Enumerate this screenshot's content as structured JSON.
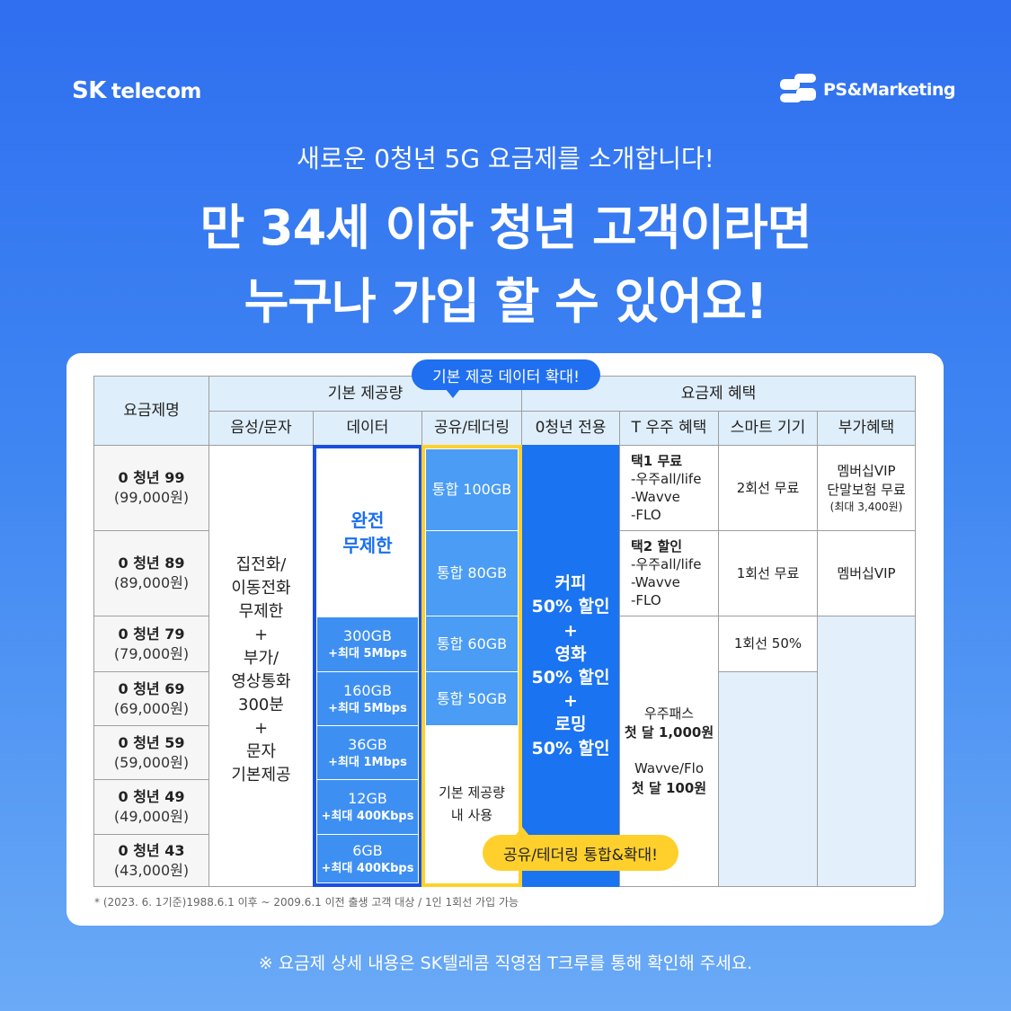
{
  "brand": {
    "left_sk": "SK",
    "left_rest": "telecom",
    "right": "PS&Marketing"
  },
  "subtitle": "새로운 0청년 5G 요금제를 소개합니다!",
  "headline": {
    "line1": "만 34세 이하 청년 고객이라면",
    "line2": "누구나 가입 할 수 있어요!"
  },
  "table": {
    "headers": {
      "plan_name": "요금제명",
      "basic": "기본 제공량",
      "benefits": "요금제 혜택",
      "voice": "음성/문자",
      "data": "데이터",
      "share": "공유/테더링",
      "youth_only": "0청년 전용",
      "t_universe": "T 우주 혜택",
      "smart_device": "스마트 기기",
      "extra": "부가혜택"
    },
    "plans": [
      {
        "name": "0 청년 99",
        "price": "(99,000원)"
      },
      {
        "name": "0 청년 89",
        "price": "(89,000원)"
      },
      {
        "name": "0 청년 79",
        "price": "(79,000원)"
      },
      {
        "name": "0 청년 69",
        "price": "(69,000원)"
      },
      {
        "name": "0 청년 59",
        "price": "(59,000원)"
      },
      {
        "name": "0 청년 49",
        "price": "(49,000원)"
      },
      {
        "name": "0 청년 43",
        "price": "(43,000원)"
      }
    ],
    "voice_lines": [
      "집전화/",
      "이동전화",
      "무제한",
      "+",
      "부가/",
      "영상통화",
      "300분",
      "+",
      "문자",
      "기본제공"
    ],
    "data_unlimited": [
      "완전",
      "무제한"
    ],
    "data_rows": [
      {
        "amount": "300GB",
        "speed": "+최대 5Mbps"
      },
      {
        "amount": "160GB",
        "speed": "+최대 5Mbps"
      },
      {
        "amount": "36GB",
        "speed": "+최대 1Mbps"
      },
      {
        "amount": "12GB",
        "speed": "+최대 400Kbps"
      },
      {
        "amount": "6GB",
        "speed": "+최대 400Kbps"
      }
    ],
    "share_rows": [
      "통합 100GB",
      "통합 80GB",
      "통합 60GB",
      "통합 50GB"
    ],
    "share_basic": [
      "기본 제공량",
      "내 사용"
    ],
    "youth_lines": [
      "커피",
      "50% 할인",
      "+",
      "영화",
      "50% 할인",
      "+",
      "로밍",
      "50% 할인"
    ],
    "t_universe_99": {
      "title": "택1 무료",
      "items": [
        "-우주all/life",
        "-Wavve",
        "-FLO"
      ]
    },
    "t_universe_89": {
      "title": "택2 할인",
      "items": [
        "-우주all/life",
        "-Wavve",
        "-FLO"
      ]
    },
    "t_universe_rest": {
      "line1": "우주패스",
      "line2": "첫 달 1,000원",
      "line3": "Wavve/Flo",
      "line4": "첫 달 100원"
    },
    "smart_99": "2회선 무료",
    "smart_89": "1회선 무료",
    "smart_79": "1회선 50%",
    "extra_99": [
      "멤버십VIP",
      "단말보험 무료",
      "(최대 3,400원)"
    ],
    "extra_89": "멤버십VIP"
  },
  "bubbles": {
    "data_expand": "기본 제공 데이터 확대!",
    "share_expand": "공유/테더링 통합&확대!"
  },
  "footnote": "* (2023. 6. 1기준)1988.6.1 이후 ~ 2009.6.1 이전 출생 고객 대상 /  1인 1회선 가입 가능",
  "bottom_note": "※ 요금제 상세 내용은 SK텔레콤 직영점 T크루를 통해 확인해 주세요."
}
